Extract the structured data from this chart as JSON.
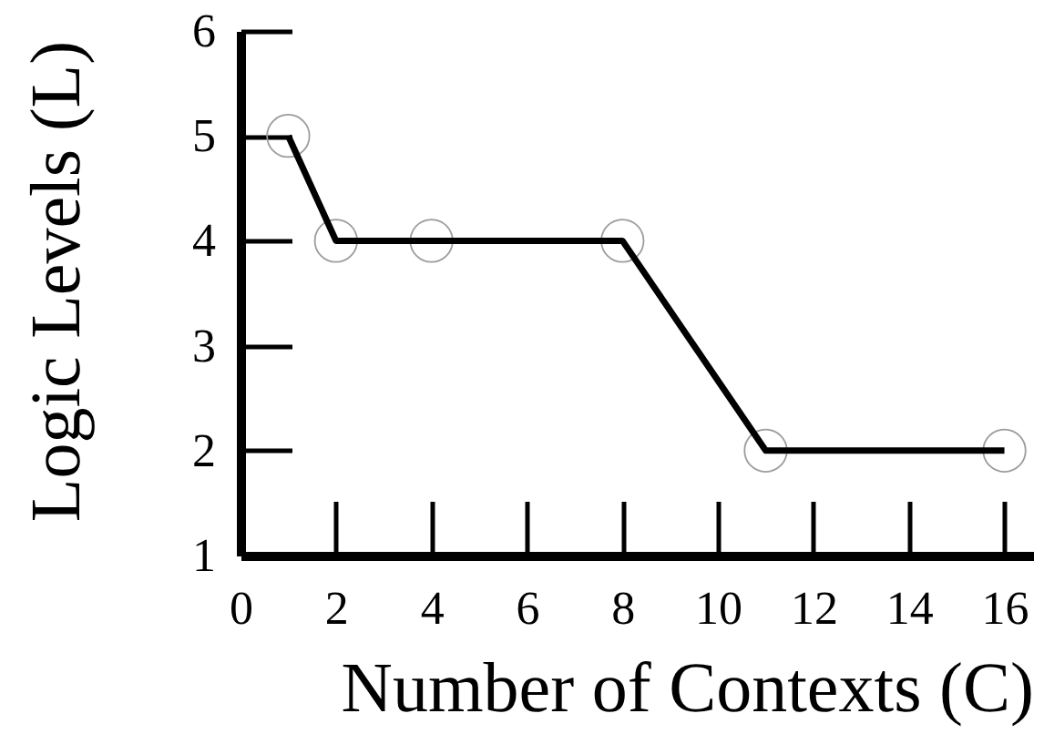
{
  "chart_data": {
    "type": "line",
    "xlabel": "Number of Contexts (C)",
    "ylabel": "Logic Levels (L)",
    "x": [
      1,
      2,
      4,
      8,
      11,
      16
    ],
    "series": [
      {
        "type": "scatter",
        "marker": "circle",
        "color": "#9c9c9c",
        "values": [
          5,
          4,
          4,
          4,
          2,
          2
        ]
      },
      {
        "color": "#000000",
        "values": [
          5,
          4,
          4,
          4,
          2,
          2
        ]
      }
    ],
    "xlim": [
      0,
      16.6
    ],
    "ylim": [
      1,
      6
    ],
    "xticks": [
      0,
      2,
      4,
      6,
      8,
      10,
      12,
      14,
      16
    ],
    "yticks": [
      1,
      2,
      3,
      4,
      5,
      6
    ],
    "line_style": "solid"
  }
}
